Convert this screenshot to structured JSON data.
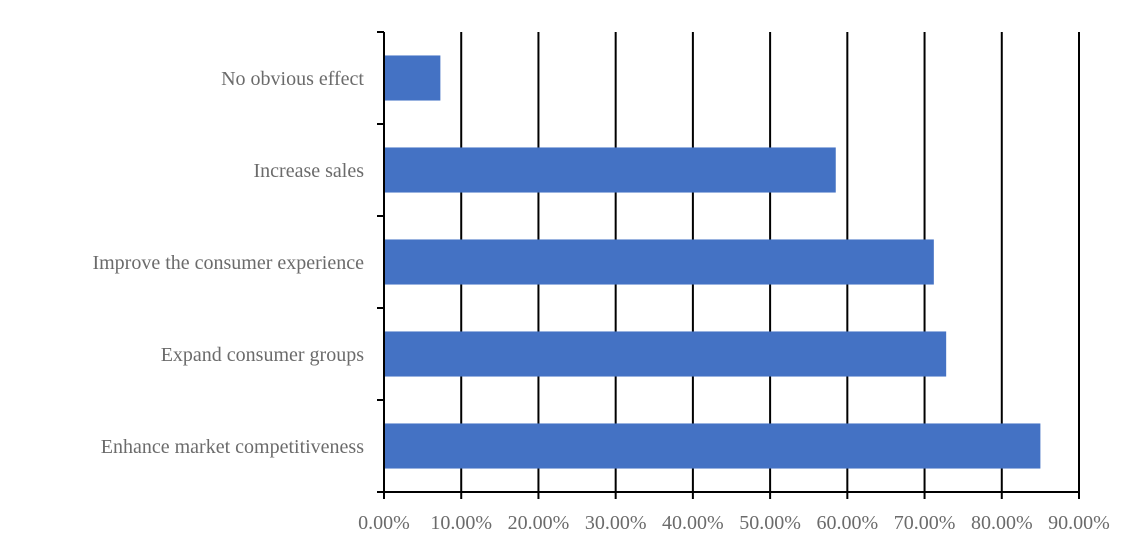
{
  "chart_data": {
    "type": "bar",
    "orientation": "horizontal",
    "categories": [
      "No obvious effect",
      "Increase sales",
      "Improve the consumer experience",
      "Expand consumer groups",
      "Enhance market competitiveness"
    ],
    "series": [
      {
        "values": [
          7.3,
          58.5,
          71.2,
          72.8,
          85.0
        ]
      }
    ],
    "xlim": [
      0,
      90
    ],
    "x_ticks": [
      0,
      10,
      20,
      30,
      40,
      50,
      60,
      70,
      80,
      90
    ],
    "x_tick_labels": [
      "0.00%",
      "10.00%",
      "20.00%",
      "30.00%",
      "40.00%",
      "50.00%",
      "60.00%",
      "70.00%",
      "80.00%",
      "90.00%"
    ],
    "value_unit": "percent",
    "title": "",
    "xlabel": "",
    "ylabel": "",
    "grid": "vertical",
    "legend": "none",
    "colors": {
      "bar": "#4472C4",
      "grid": "#000000",
      "label": "#6b6b6b"
    }
  }
}
